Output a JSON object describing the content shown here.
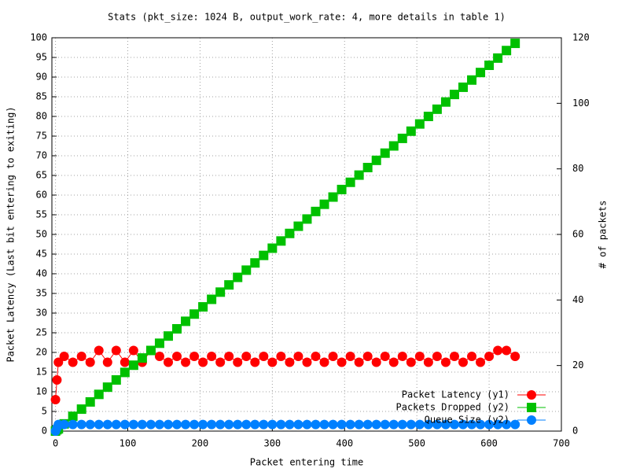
{
  "chart_data": {
    "type": "line",
    "title": "Stats (pkt_size: 1024 B, output_work_rate: 4, more details in table 1)",
    "x_label": "Packet entering time",
    "y_label": "Packet Latency (Last bit entering to exiting)",
    "y2_label": "# of packets",
    "xlim": [
      -5,
      700
    ],
    "xticks": [
      0,
      100,
      200,
      300,
      400,
      500,
      600,
      700
    ],
    "ylim": [
      0,
      100
    ],
    "yticks": [
      0,
      5,
      10,
      15,
      20,
      25,
      30,
      35,
      40,
      45,
      50,
      55,
      60,
      65,
      70,
      75,
      80,
      85,
      90,
      95,
      100
    ],
    "y2lim": [
      0,
      120
    ],
    "y2ticks": [
      0,
      20,
      40,
      60,
      80,
      100,
      120
    ],
    "grid": true,
    "legend": "bottom-right",
    "x": [
      0,
      2,
      4,
      12,
      24,
      36,
      48,
      60,
      72,
      84,
      96,
      108,
      120,
      132,
      144,
      156,
      168,
      180,
      192,
      204,
      216,
      228,
      240,
      252,
      264,
      276,
      288,
      300,
      312,
      324,
      336,
      348,
      360,
      372,
      384,
      396,
      408,
      420,
      432,
      444,
      456,
      468,
      480,
      492,
      504,
      516,
      528,
      540,
      552,
      564,
      576,
      588,
      600,
      612,
      624,
      636
    ],
    "series": [
      {
        "name": "Packet Latency (y1)",
        "color": "#ff0000",
        "marker": "circle",
        "axis": "y",
        "values": [
          8,
          13,
          17.5,
          19,
          17.5,
          19,
          17.5,
          20.5,
          17.5,
          20.5,
          17.5,
          20.5,
          17.5,
          20.5,
          19,
          17.5,
          19,
          17.5,
          19,
          17.5,
          19,
          17.5,
          19,
          17.5,
          19,
          17.5,
          19,
          17.5,
          19,
          17.5,
          19,
          17.5,
          19,
          17.5,
          19,
          17.5,
          19,
          17.5,
          19,
          17.5,
          19,
          17.5,
          19,
          17.5,
          19,
          17.5,
          19,
          17.5,
          19,
          17.5,
          19,
          17.5,
          19,
          20.5,
          20.5,
          19
        ]
      },
      {
        "name": "Packets Dropped (y2)",
        "color": "#00c000",
        "marker": "square",
        "axis": "y2",
        "values": [
          0,
          0.4,
          0.7,
          2.2,
          4.5,
          6.7,
          8.9,
          11.2,
          13.4,
          15.6,
          17.9,
          20.1,
          22.3,
          24.6,
          26.8,
          29.0,
          31.2,
          33.5,
          35.7,
          37.9,
          40.2,
          42.4,
          44.6,
          46.9,
          49.1,
          51.3,
          53.6,
          55.8,
          58.0,
          60.3,
          62.5,
          64.7,
          67.0,
          69.2,
          71.4,
          73.7,
          75.9,
          78.1,
          80.4,
          82.6,
          84.8,
          87.0,
          89.3,
          91.5,
          93.7,
          96.0,
          98.2,
          100.4,
          102.7,
          104.9,
          107.1,
          109.4,
          111.6,
          113.8,
          116.1,
          118.3
        ]
      },
      {
        "name": "Queue Size (y2)",
        "color": "#0080ff",
        "marker": "circle",
        "axis": "y2",
        "values": [
          0,
          1,
          2,
          2,
          2,
          2,
          2,
          2,
          2,
          2,
          2,
          2,
          2,
          2,
          2,
          2,
          2,
          2,
          2,
          2,
          2,
          2,
          2,
          2,
          2,
          2,
          2,
          2,
          2,
          2,
          2,
          2,
          2,
          2,
          2,
          2,
          2,
          2,
          2,
          2,
          2,
          2,
          2,
          2,
          2,
          2,
          2,
          2,
          2,
          2,
          2,
          2,
          2,
          2,
          2,
          2
        ]
      }
    ]
  }
}
